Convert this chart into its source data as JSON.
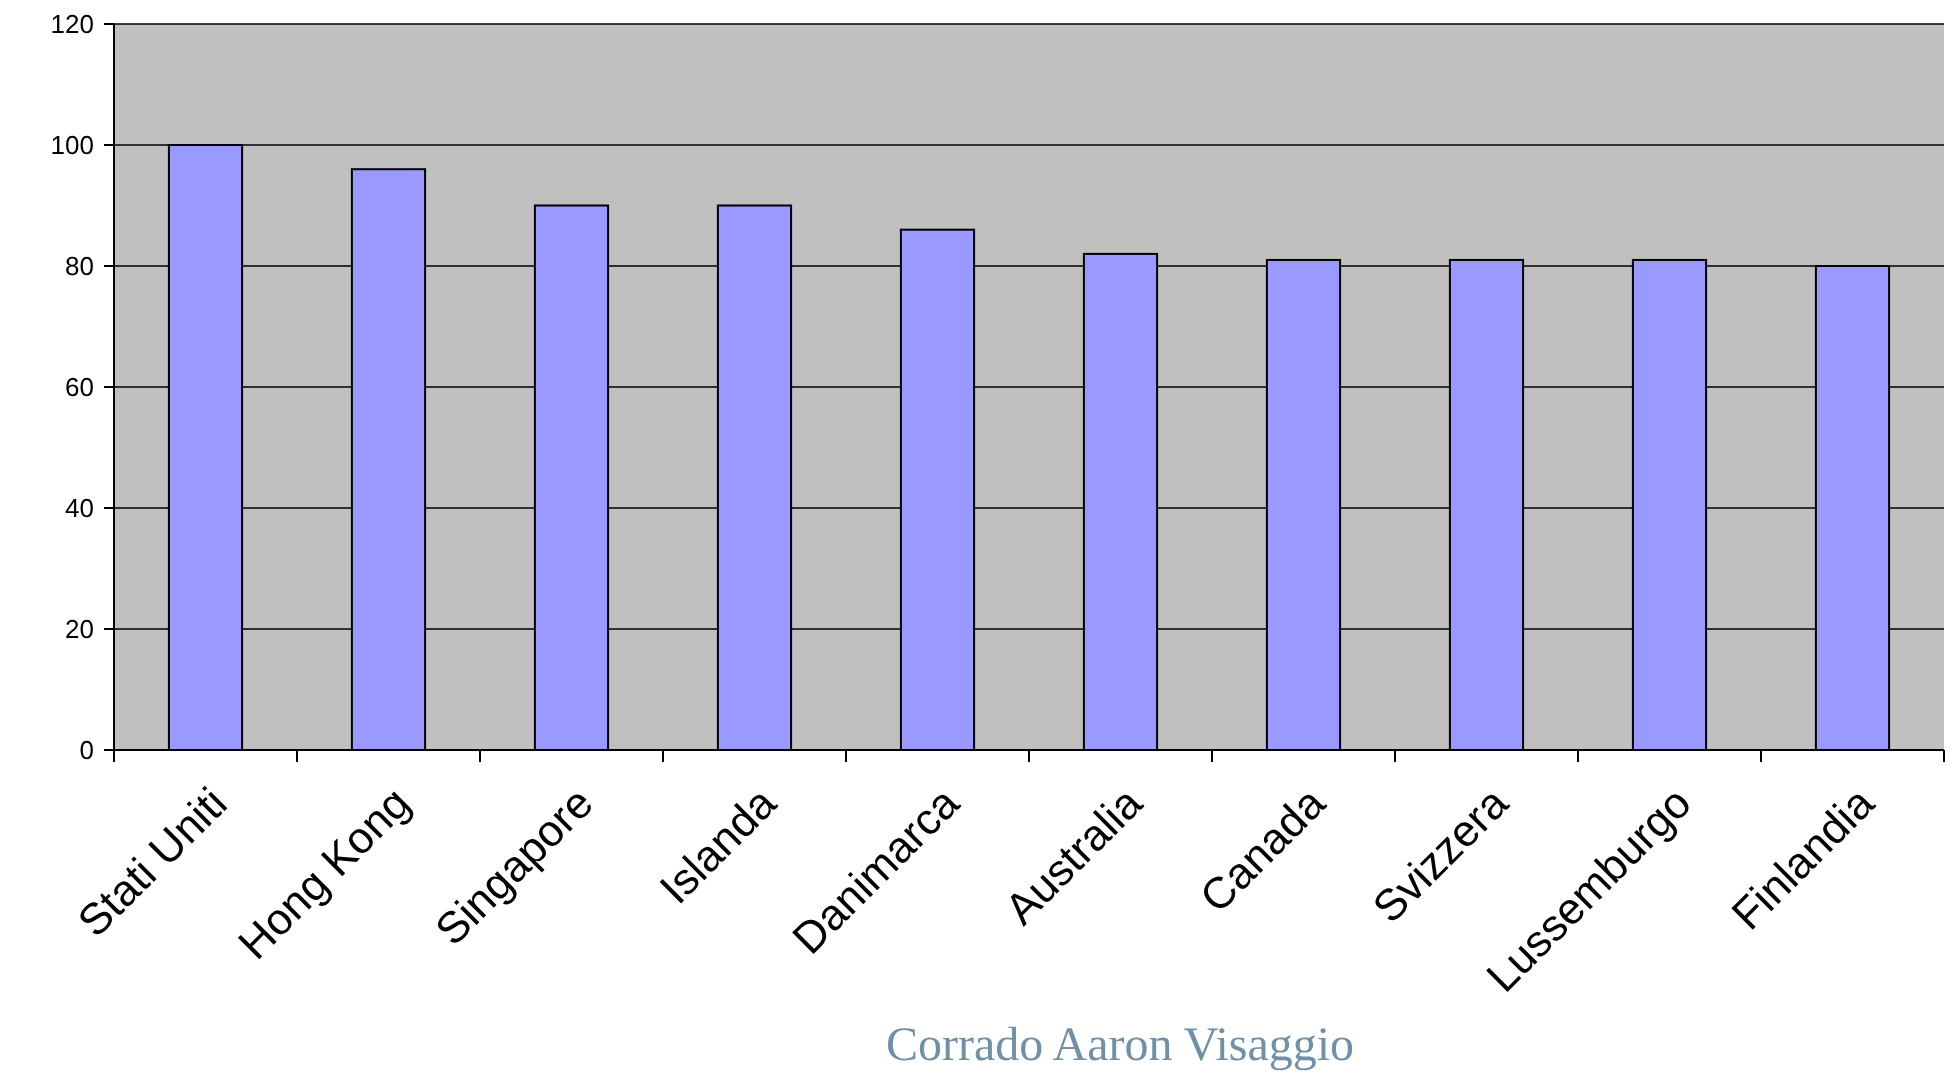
{
  "chart_data": {
    "type": "bar",
    "categories": [
      "Stati Uniti",
      "Hong Kong",
      "Singapore",
      "Islanda",
      "Danimarca",
      "Australia",
      "Canada",
      "Svizzera",
      "Lussemburgo",
      "Finlandia"
    ],
    "values": [
      100,
      96,
      90,
      90,
      86,
      82,
      81,
      81,
      81,
      80
    ],
    "color": "#9999ff",
    "ylim": [
      0,
      120
    ],
    "yticks": [
      0,
      20,
      40,
      60,
      80,
      100,
      120
    ],
    "grid": "y",
    "annotations": [
      "Corrado Aaron  Visaggio"
    ]
  }
}
